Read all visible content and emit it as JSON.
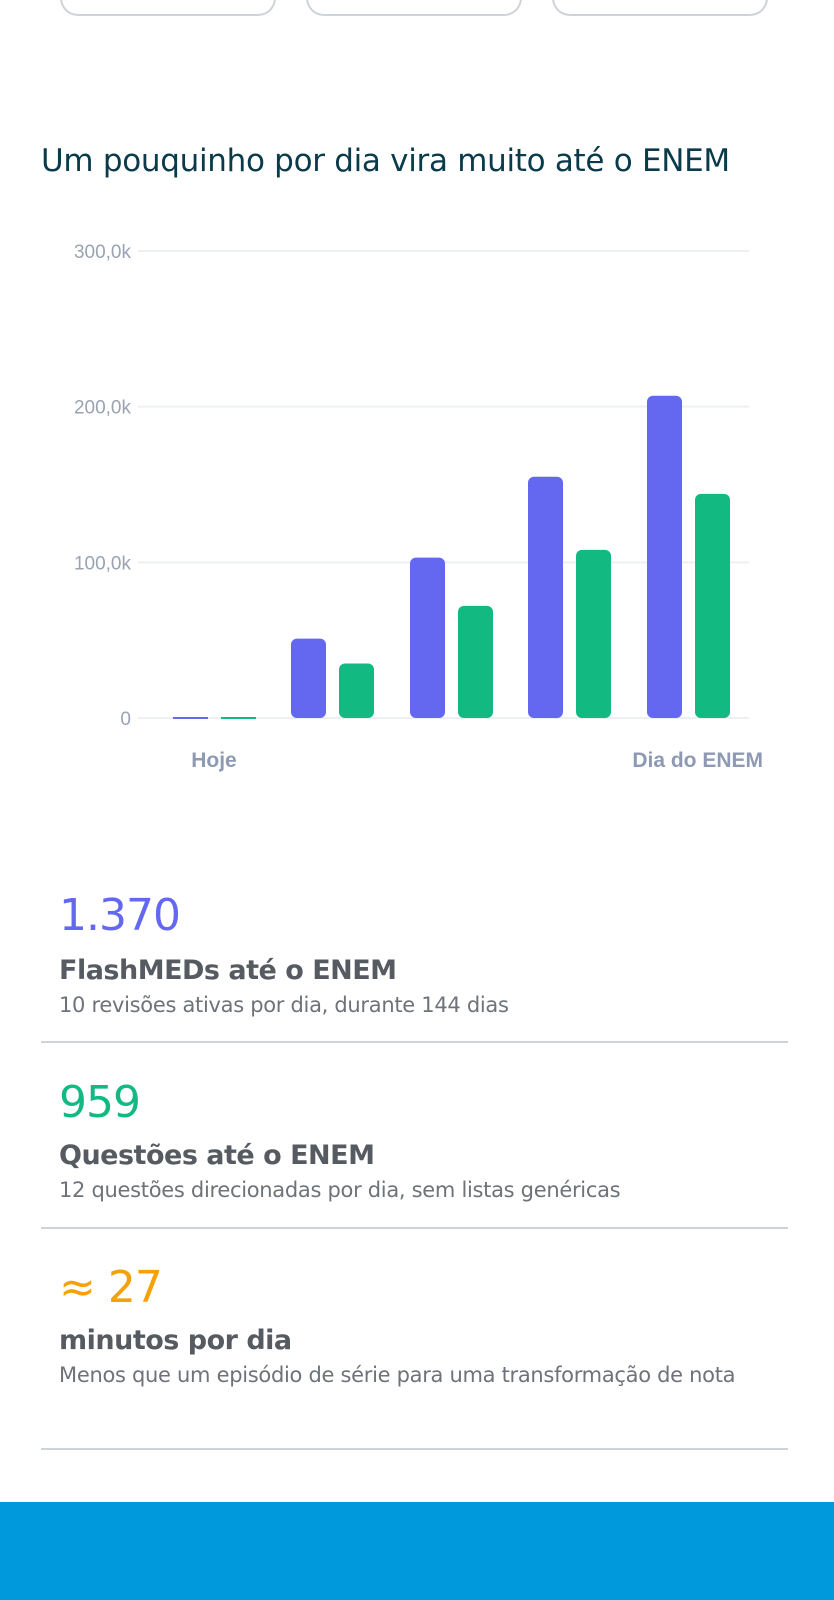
{
  "headline": "Um pouquinho por dia vira muito até o ENEM",
  "colors": {
    "flashmeds": "#6468f1",
    "questoes": "#12b981",
    "minutos": "#f5a10a",
    "bottom_bar": "#0099dc",
    "headline": "#0b3a4a"
  },
  "chart_data": {
    "type": "bar",
    "categories": [
      "Hoje",
      "",
      "",
      "",
      "Dia do ENEM"
    ],
    "x_labels": [
      "Hoje",
      "Dia do ENEM"
    ],
    "y_ticks": [
      "0",
      "100,0k",
      "200,0k",
      "300,0k"
    ],
    "ylim": [
      0,
      300000
    ],
    "grid": true,
    "series": [
      {
        "color": "#6468f1",
        "values": [
          0,
          51000,
          103000,
          155000,
          207000
        ]
      },
      {
        "color": "#12b981",
        "values": [
          0,
          35000,
          72000,
          108000,
          144000
        ]
      }
    ]
  },
  "stats": [
    {
      "value": "1.370",
      "title": "FlashMEDs até o ENEM",
      "description": "10 revisões ativas por dia, durante 144 dias",
      "color": "#6468f1"
    },
    {
      "value": "959",
      "title": "Questões até o ENEM",
      "description": "12 questões direcionadas por dia, sem listas genéricas",
      "color": "#12b981"
    },
    {
      "value": "≈ 27",
      "title": "minutos por dia",
      "description": "Menos que um episódio de série para uma transformação de nota",
      "color": "#f5a10a"
    }
  ]
}
